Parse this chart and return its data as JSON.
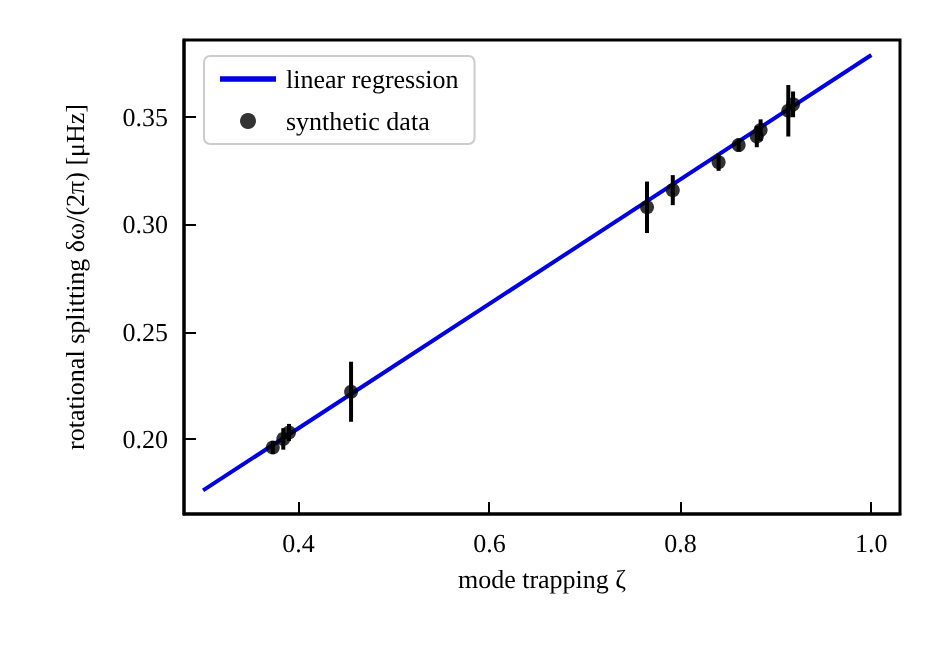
{
  "chart_data": {
    "type": "scatter",
    "xlabel": "mode trapping ζ",
    "ylabel": "rotational splitting δω/(2π) [μHz]",
    "xlim": [
      0.28,
      1.03
    ],
    "ylim": [
      0.165,
      0.386
    ],
    "xticks": [
      0.4,
      0.6,
      0.8,
      {
        "value": 1,
        "label": "1.0"
      }
    ],
    "yticks": [
      {
        "value": 0.2,
        "label": "0.20"
      },
      {
        "value": 0.25,
        "label": "0.25"
      },
      {
        "value": 0.3,
        "label": "0.30"
      },
      {
        "value": 0.35,
        "label": "0.35"
      }
    ],
    "legend": "top left",
    "grid": false,
    "series": [
      {
        "name": "linear regression",
        "type": "line",
        "color": "#0000e0",
        "x": [
          0.3,
          1.0
        ],
        "values": [
          0.176,
          0.379
        ],
        "marker": "none",
        "line_style": "solid"
      },
      {
        "name": "synthetic data",
        "color": "#000000",
        "marker": "circle",
        "x": [
          0.373,
          0.384,
          0.39,
          0.455,
          0.765,
          0.792,
          0.84,
          0.861,
          0.88,
          0.884,
          0.913,
          0.918
        ],
        "values": [
          0.196,
          0.2,
          0.203,
          0.222,
          0.308,
          0.316,
          0.329,
          0.337,
          0.341,
          0.344,
          0.353,
          0.356
        ],
        "errors": [
          0.003,
          0.005,
          0.004,
          0.014,
          0.012,
          0.007,
          0.004,
          0.003,
          0.005,
          0.005,
          0.012,
          0.006
        ]
      }
    ]
  }
}
